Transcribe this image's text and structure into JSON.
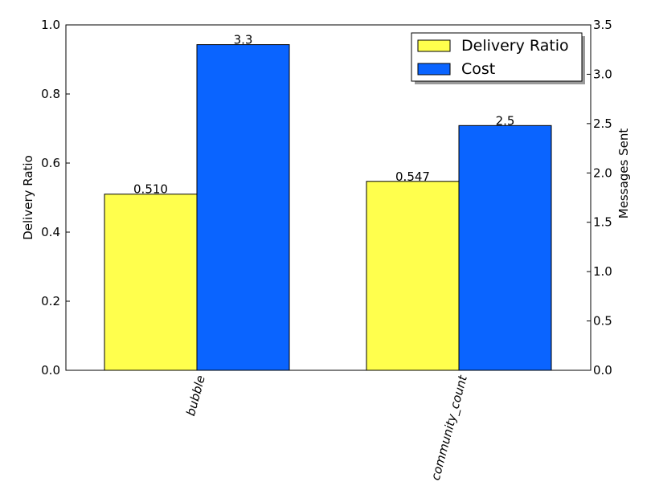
{
  "chart_data": {
    "type": "bar",
    "categories": [
      "bubble",
      "community_count"
    ],
    "series": [
      {
        "name": "Delivery Ratio",
        "axis": "left",
        "color": "#ffff4d",
        "values": [
          0.51,
          0.547
        ],
        "value_labels": [
          "0.510",
          "0.547"
        ]
      },
      {
        "name": "Cost",
        "axis": "right",
        "color": "#0a64ff",
        "values": [
          3.3,
          2.48
        ],
        "value_labels": [
          "3.3",
          "2.5"
        ]
      }
    ],
    "ylabel": "Delivery Ratio",
    "ylabel_right": "Messages Sent",
    "ylim": [
      0,
      1.0
    ],
    "ylim_right": [
      0,
      3.5
    ],
    "yticks": [
      "0.0",
      "0.2",
      "0.4",
      "0.6",
      "0.8",
      "1.0"
    ],
    "yticks_right": [
      "0.0",
      "0.5",
      "1.0",
      "1.5",
      "2.0",
      "2.5",
      "3.0",
      "3.5"
    ],
    "legend_position": "top-right",
    "grid": false
  }
}
